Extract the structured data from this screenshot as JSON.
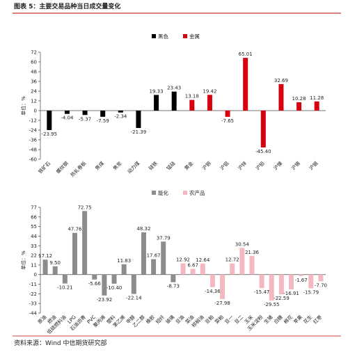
{
  "title": "图表 5：主要交易品种当日成交量变化",
  "source": "资料来源：Wind 中信期货研究部",
  "chart_data": [
    {
      "type": "bar",
      "ylabel": "单位：%",
      "categories": [
        "铁矿石",
        "螺纹钢",
        "热轧卷板",
        "焦煤",
        "焦炭",
        "动力煤",
        "硅铁",
        "锰硅",
        "黄金",
        "沪铜",
        "沪铝",
        "沪锌",
        "沪铅",
        "沪镍",
        "沪锡",
        "沪银"
      ],
      "series": [
        {
          "name": "黑色",
          "color": "#000000",
          "values": [
            -23.95,
            -4.04,
            -5.37,
            -7.59,
            -2.34,
            -21.39,
            19.33,
            23.43,
            null,
            null,
            null,
            null,
            null,
            null,
            null,
            null
          ],
          "value_labels": [
            "-23.95",
            "-4.04",
            "-5.37",
            "-7.59",
            "-2.34",
            "-21.39",
            "19.33",
            "23.43",
            null,
            null,
            null,
            null,
            null,
            null,
            null,
            null
          ]
        },
        {
          "name": "金属",
          "color": "#d7000f",
          "values": [
            null,
            null,
            null,
            null,
            null,
            null,
            null,
            null,
            13.18,
            19.42,
            -7.65,
            65.01,
            -45.4,
            32.69,
            10.28,
            11.28
          ],
          "value_labels": [
            null,
            null,
            null,
            null,
            null,
            null,
            null,
            null,
            "13.18",
            "19.42",
            "-7.65",
            "65.01",
            "-45.40",
            "32.69",
            "10.28",
            "11.28"
          ]
        }
      ],
      "ylim": [
        -60,
        72
      ],
      "yticks": [
        72,
        60,
        48,
        36,
        24,
        12,
        0,
        -12,
        -24,
        -36,
        -48,
        -60
      ]
    },
    {
      "type": "bar",
      "ylabel": "单位：%",
      "categories": [
        "原油",
        "燃油",
        "低硫燃料油",
        "LPG",
        "石油沥青",
        "PVC",
        "聚丙烯",
        "塑料",
        "苯乙烯",
        "甲醇",
        "乙二醇",
        "橡胶",
        "短纤",
        "玻璃",
        "豆油",
        "菜油",
        "棕榈油",
        "豆粕",
        "菜粕",
        "豆一",
        "豆二",
        "玉米",
        "玉米淀粉",
        "生猪",
        "白糖",
        "棉花",
        "苹果",
        "花生",
        "红枣"
      ],
      "series": [
        {
          "name": "能化",
          "color": "#8c8c8c",
          "values": [
            17.12,
            9.5,
            -10.21,
            47.76,
            72.75,
            -5.66,
            -23.92,
            -10.4,
            11.83,
            -22.14,
            48.32,
            17.67,
            37.79,
            -8.73,
            null,
            null,
            null,
            null,
            null,
            null,
            null,
            null,
            null,
            null,
            null,
            null,
            null,
            null,
            null
          ],
          "value_labels": [
            "17.12",
            "9.50",
            "-10.21",
            "47.76",
            "72.75",
            "-5.66",
            "-23.92",
            "-10.40",
            "11.83",
            "-22.14",
            "48.32",
            "17.67",
            "37.79",
            "-8.73",
            null,
            null,
            null,
            null,
            null,
            null,
            null,
            null,
            null,
            null,
            null,
            null,
            null,
            null,
            null
          ]
        },
        {
          "name": "农产品",
          "color": "#f4b8c0",
          "values": [
            null,
            null,
            null,
            null,
            null,
            null,
            null,
            null,
            null,
            null,
            null,
            null,
            null,
            null,
            12.92,
            6.67,
            12.64,
            -14.36,
            -27.98,
            12.72,
            30.54,
            21.36,
            -15.47,
            -29.55,
            -22.59,
            -16.91,
            -1.67,
            -15.79,
            -7.7
          ],
          "value_labels": [
            null,
            null,
            null,
            null,
            null,
            null,
            null,
            null,
            null,
            null,
            null,
            null,
            null,
            null,
            "12.92",
            "6.67",
            "12.64",
            "-14.36",
            "-27.98",
            "12.72",
            "30.54",
            "21.36",
            "-15.47",
            "-29.55",
            "-22.59",
            "-16.91",
            "-1.67",
            "-15.79",
            "-7.70"
          ]
        }
      ],
      "ylim": [
        -44,
        77
      ],
      "yticks": [
        77,
        66,
        55,
        44,
        33,
        22,
        11,
        0,
        -11,
        -22,
        -33,
        -44
      ]
    }
  ]
}
